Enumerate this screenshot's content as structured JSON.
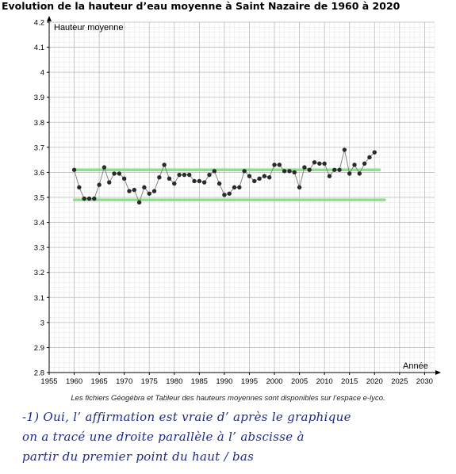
{
  "chart_data": {
    "type": "scatter",
    "title": "Evolution de la hauteur d’eau moyenne à Saint Nazaire de 1960 à 2020",
    "ylabel": "Hauteur moyenne",
    "xlabel": "Année",
    "xlim": [
      1955,
      2032
    ],
    "ylim": [
      2.8,
      4.2
    ],
    "x_ticks": [
      "1955",
      "1960",
      "1965",
      "1970",
      "1975",
      "1980",
      "1985",
      "1990",
      "1995",
      "2000",
      "2005",
      "2010",
      "2015",
      "2020",
      "2025",
      "2030"
    ],
    "y_ticks": [
      "2.8",
      "2.9",
      "3",
      "3.1",
      "3.2",
      "3.3",
      "3.4",
      "3.5",
      "3.6",
      "3.7",
      "3.8",
      "3.9",
      "4",
      "4.1",
      "4.2"
    ],
    "grid": true,
    "series": [
      {
        "x": [
          1960,
          1961,
          1962,
          1963,
          1964,
          1965,
          1966,
          1967,
          1968,
          1969,
          1970,
          1971,
          1972,
          1973,
          1974,
          1975,
          1976,
          1977,
          1978,
          1979,
          1980,
          1981,
          1982,
          1983,
          1984,
          1985,
          1986,
          1987,
          1988,
          1989,
          1990,
          1991,
          1992,
          1993,
          1994,
          1995,
          1996,
          1997,
          1998,
          1999,
          2000,
          2001,
          2002,
          2003,
          2004,
          2005,
          2006,
          2007,
          2008,
          2009,
          2010,
          2011,
          2012,
          2013,
          2014,
          2015,
          2016,
          2017,
          2018,
          2019,
          2020
        ],
        "y": [
          3.61,
          3.54,
          3.495,
          3.495,
          3.495,
          3.55,
          3.62,
          3.56,
          3.595,
          3.595,
          3.575,
          3.525,
          3.53,
          3.48,
          3.54,
          3.515,
          3.525,
          3.58,
          3.63,
          3.575,
          3.555,
          3.59,
          3.59,
          3.59,
          3.565,
          3.565,
          3.56,
          3.59,
          3.605,
          3.555,
          3.51,
          3.515,
          3.54,
          3.54,
          3.605,
          3.585,
          3.565,
          3.575,
          3.585,
          3.58,
          3.63,
          3.63,
          3.605,
          3.605,
          3.6,
          3.54,
          3.62,
          3.61,
          3.64,
          3.635,
          3.635,
          3.585,
          3.61,
          3.61,
          3.69,
          3.595,
          3.63,
          3.595,
          3.635,
          3.66,
          3.68
        ],
        "color": "#2a2a2a"
      }
    ],
    "reference_lines": [
      {
        "x_start": 1960,
        "x_end": 2021,
        "y": 3.61,
        "color": "#7ee07e"
      },
      {
        "x_start": 1960,
        "x_end": 2022,
        "y": 3.49,
        "color": "#7ee07e"
      }
    ]
  },
  "caption": "Les fichiers Géogébra et Tableur des hauteurs moyennes sont disponibles sur l’espace e-lyco.",
  "handwriting": [
    "-1) Oui, l’ affirmation est vraie d’ après le graphique",
    "on a tracé une droite parallèle à l’ abscisse à",
    "partir du premier point du haut / bas"
  ]
}
